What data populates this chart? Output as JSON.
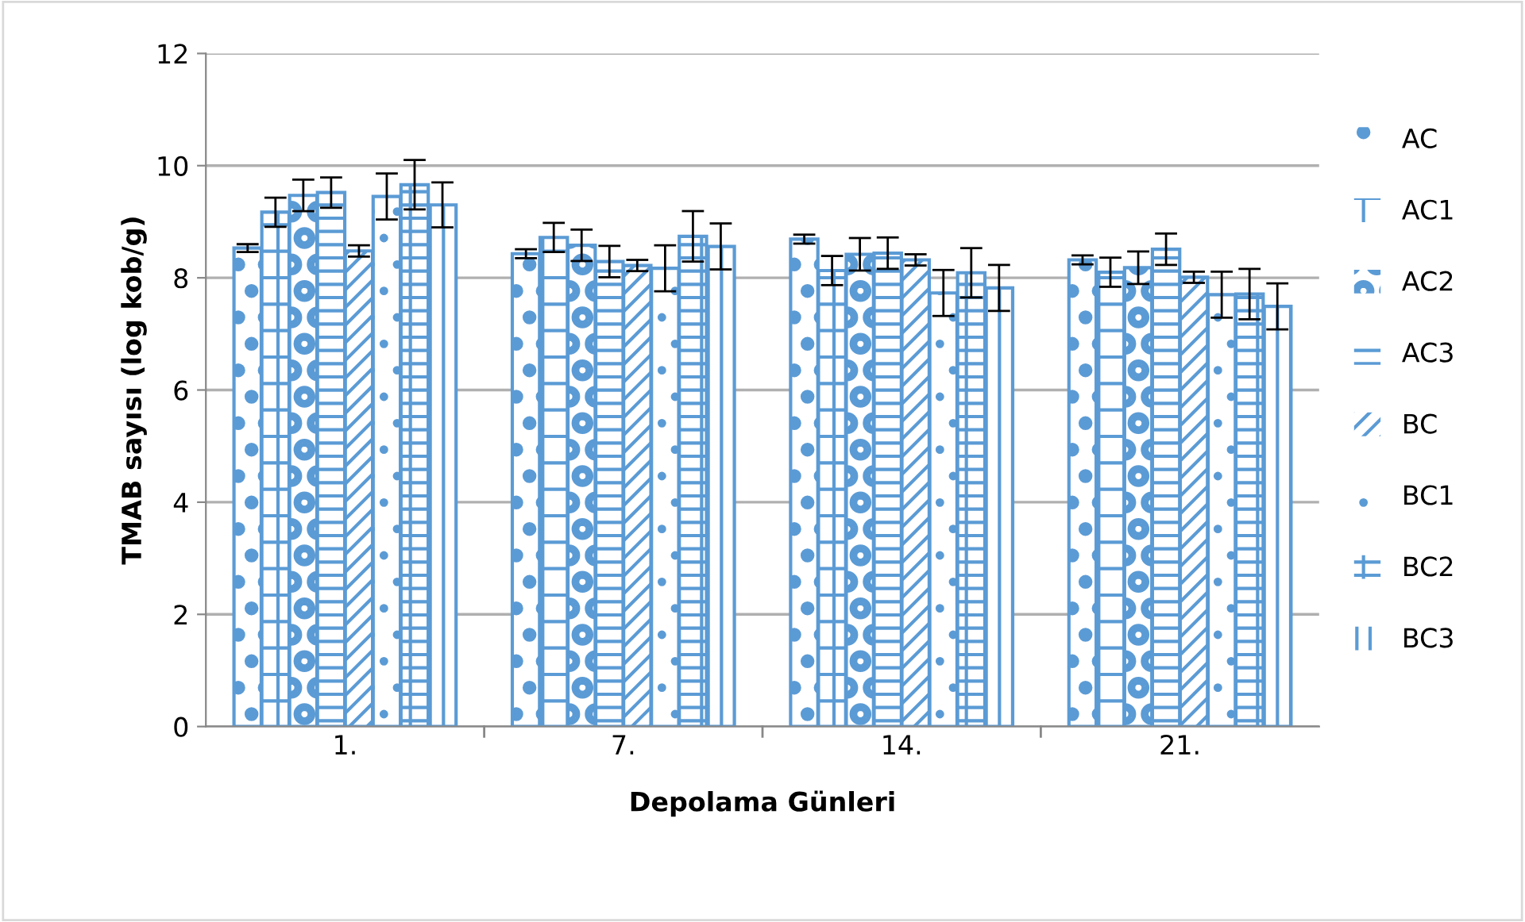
{
  "chart_data": {
    "type": "bar",
    "xlabel": "Depolama Günleri",
    "ylabel": "TMAB sayısı (log kob/g)",
    "categories": [
      "1.",
      "7.",
      "14.",
      "21."
    ],
    "series": [
      {
        "name": "AC",
        "color": "#5b9bd5",
        "values": [
          8.53,
          8.43,
          8.69,
          8.32
        ],
        "errors": [
          0.07,
          0.08,
          0.08,
          0.08
        ]
      },
      {
        "name": "AC1",
        "color": "#5b9bd5",
        "values": [
          9.17,
          8.72,
          8.13,
          8.1
        ],
        "errors": [
          0.26,
          0.26,
          0.26,
          0.26
        ]
      },
      {
        "name": "AC2",
        "color": "#5b9bd5",
        "values": [
          9.47,
          8.58,
          8.42,
          8.18
        ],
        "errors": [
          0.28,
          0.28,
          0.29,
          0.29
        ]
      },
      {
        "name": "AC3",
        "color": "#5b9bd5",
        "values": [
          9.52,
          8.29,
          8.44,
          8.51
        ],
        "errors": [
          0.27,
          0.28,
          0.28,
          0.28
        ]
      },
      {
        "name": "BC",
        "color": "#5b9bd5",
        "values": [
          8.48,
          8.22,
          8.32,
          8.01
        ],
        "errors": [
          0.1,
          0.1,
          0.1,
          0.1
        ]
      },
      {
        "name": "BC1",
        "color": "#5b9bd5",
        "values": [
          9.45,
          8.17,
          7.73,
          7.7
        ],
        "errors": [
          0.41,
          0.41,
          0.41,
          0.41
        ]
      },
      {
        "name": "BC2",
        "color": "#5b9bd5",
        "values": [
          9.66,
          8.74,
          8.09,
          7.71
        ],
        "errors": [
          0.44,
          0.45,
          0.44,
          0.45
        ]
      },
      {
        "name": "BC3",
        "color": "#5b9bd5",
        "values": [
          9.3,
          8.56,
          7.82,
          7.49
        ],
        "errors": [
          0.4,
          0.41,
          0.41,
          0.41
        ]
      }
    ],
    "ylim": [
      0,
      12
    ],
    "yticks": [
      0,
      2,
      4,
      6,
      8,
      10,
      12
    ],
    "grid": "y",
    "legend": "right"
  }
}
